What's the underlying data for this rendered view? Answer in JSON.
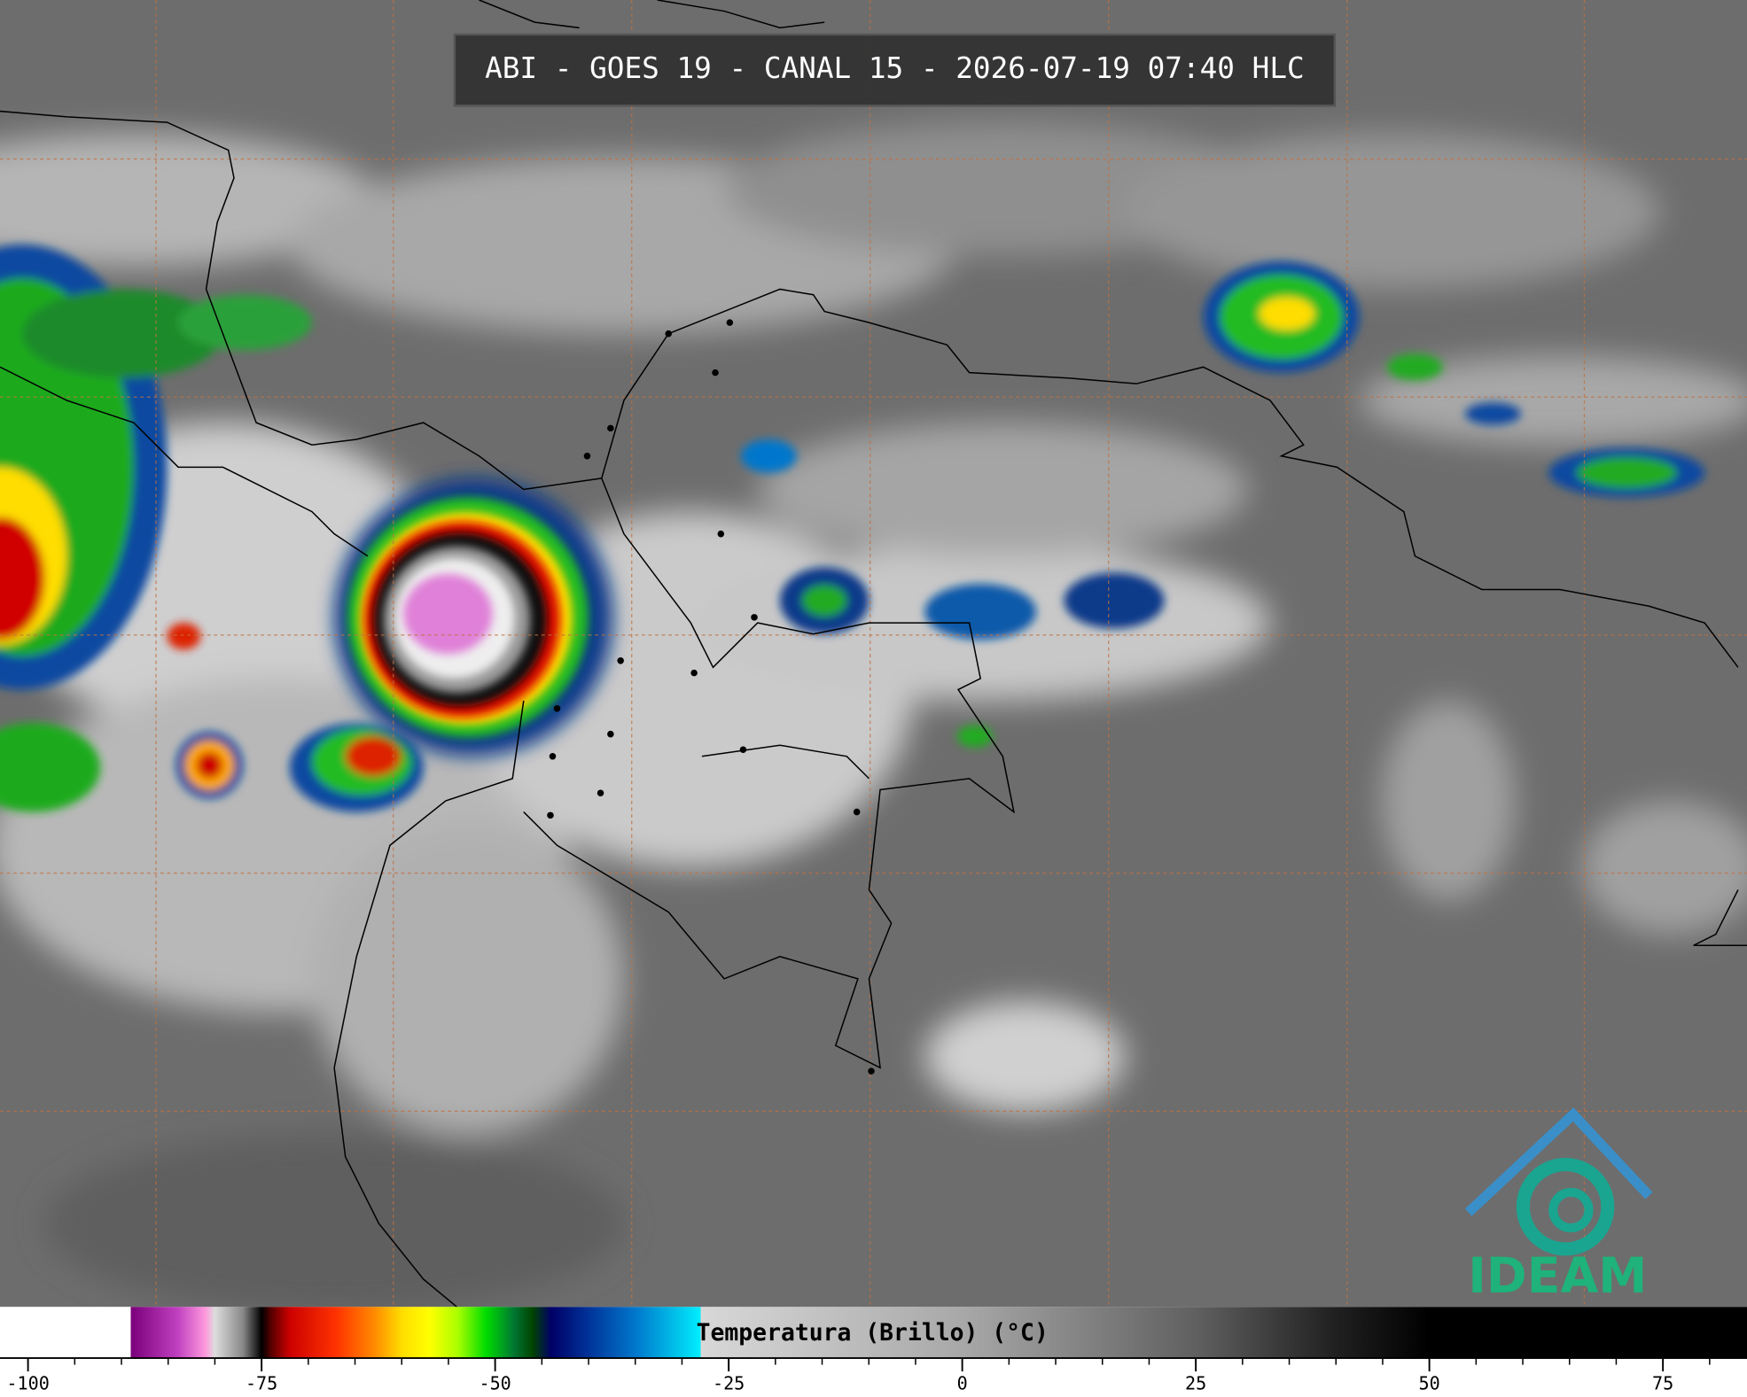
{
  "header": {
    "title": "ABI - GOES 19 - CANAL 15 - 2026-07-19 07:40 HLC"
  },
  "logo": {
    "text": "IDEAM"
  },
  "colorbar": {
    "label": "Temperatura (Brillo) (°C)",
    "lim": [
      -103,
      84
    ],
    "ticks": [
      -100,
      -75,
      -50,
      -25,
      0,
      25,
      50,
      75
    ],
    "minor_ticks": [
      -100,
      -95,
      -90,
      -85,
      -80,
      -75,
      -70,
      -65,
      -60,
      -55,
      -50,
      -45,
      -40,
      -35,
      -30,
      -25,
      -20,
      -15,
      -10,
      -5,
      0,
      5,
      10,
      15,
      20,
      25,
      30,
      35,
      40,
      45,
      50,
      55,
      60,
      65,
      70,
      75,
      80
    ],
    "stops": [
      {
        "value": -103,
        "color": "#ffffff"
      },
      {
        "value": -89,
        "color": "#ffffff"
      },
      {
        "value": -89,
        "color": "#7a007a"
      },
      {
        "value": -84,
        "color": "#c040c0"
      },
      {
        "value": -81,
        "color": "#ff99dd"
      },
      {
        "value": -80,
        "color": "#dddddd"
      },
      {
        "value": -77,
        "color": "#888888"
      },
      {
        "value": -75,
        "color": "#000000"
      },
      {
        "value": -74,
        "color": "#550000"
      },
      {
        "value": -72,
        "color": "#cc0000"
      },
      {
        "value": -67,
        "color": "#ff3300"
      },
      {
        "value": -63,
        "color": "#ff8800"
      },
      {
        "value": -60,
        "color": "#ffdd00"
      },
      {
        "value": -57,
        "color": "#ffff00"
      },
      {
        "value": -54,
        "color": "#aaff00"
      },
      {
        "value": -51,
        "color": "#00dd00"
      },
      {
        "value": -48,
        "color": "#007733"
      },
      {
        "value": -46,
        "color": "#004400"
      },
      {
        "value": -44,
        "color": "#000066"
      },
      {
        "value": -40,
        "color": "#003399"
      },
      {
        "value": -35,
        "color": "#0077cc"
      },
      {
        "value": -30,
        "color": "#00ccee"
      },
      {
        "value": -28,
        "color": "#00eeff"
      },
      {
        "value": -28,
        "color": "#d8d8d8"
      },
      {
        "value": 0,
        "color": "#a8a8a8"
      },
      {
        "value": 25,
        "color": "#606060"
      },
      {
        "value": 40,
        "color": "#202020"
      },
      {
        "value": 50,
        "color": "#000000"
      },
      {
        "value": 84,
        "color": "#000000"
      }
    ]
  }
}
